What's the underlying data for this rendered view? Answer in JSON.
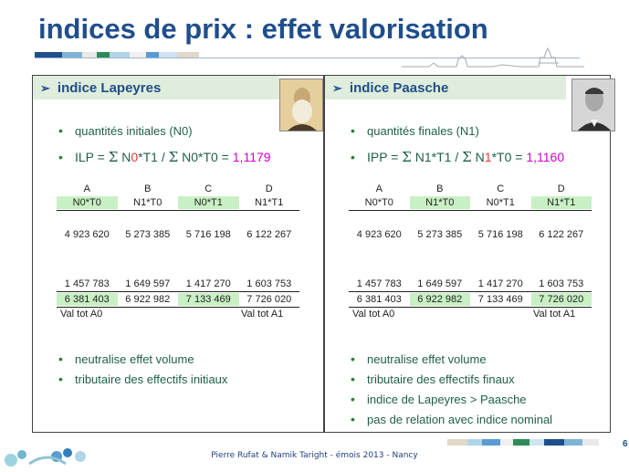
{
  "title": "indices de prix : effet valorisation",
  "footer": "Pierre Rufat & Namik Taright - émois 2013 - Nancy",
  "page_number": "6",
  "colors": {
    "title": "#1f4e8c",
    "bullet_text": "#1f5f4c",
    "highlight": "#c9f0c4",
    "index_value": "#d500d5",
    "accent_red": "#e53935"
  },
  "left_panel": {
    "heading": "indice Lapeyres",
    "portrait_icon": "portrait-laspeyres",
    "bullets_top": [
      "quantités initiales (N0)"
    ],
    "formula": {
      "prefix": "ILP = ",
      "sigma": "Σ",
      "n1": "N",
      "n1_idx": "0",
      "n1_rest": "*T1 / ",
      "n2": "N0*T0",
      "eq": " = ",
      "value": "1,1179"
    },
    "table": {
      "headers": [
        "A",
        "B",
        "C",
        "D"
      ],
      "subheaders": [
        "N0*T0",
        "N1*T0",
        "N0*T1",
        "N1*T1"
      ],
      "row1": [
        "4 923 620",
        "5 273 385",
        "5 716 198",
        "6 122 267"
      ],
      "row2": [
        "1 457 783",
        "1 649 597",
        "1 417 270",
        "1 603 753"
      ],
      "row3": [
        "6 381 403",
        "6 922 982",
        "7 133 469",
        "7 726 020"
      ],
      "foot_left": "Val tot A0",
      "foot_right": "Val tot A1"
    },
    "bullets_bottom": [
      "neutralise effet volume",
      "tributaire des effectifs initiaux"
    ]
  },
  "right_panel": {
    "heading": "indice Paasche",
    "portrait_icon": "portrait-paasche",
    "bullets_top": [
      "quantités finales (N1)"
    ],
    "formula": {
      "prefix": "IPP = ",
      "sigma": "Σ",
      "n1": "N1*T1 / ",
      "n2a": "N",
      "n2_idx": "1",
      "n2_rest": "*T0",
      "eq": " = ",
      "value": "1,1160"
    },
    "table": {
      "headers": [
        "A",
        "B",
        "C",
        "D"
      ],
      "subheaders": [
        "N0*T0",
        "N1*T0",
        "N0*T1",
        "N1*T1"
      ],
      "row1": [
        "4 923 620",
        "5 273 385",
        "5 716 198",
        "6 122 267"
      ],
      "row2": [
        "1 457 783",
        "1 649 597",
        "1 417 270",
        "1 603 753"
      ],
      "row3": [
        "6 381 403",
        "6 922 982",
        "7 133 469",
        "7 726 020"
      ],
      "foot_left": "Val tot A0",
      "foot_right": "Val tot A1"
    },
    "bullets_bottom": [
      "neutralise effet volume",
      "tributaire des effectifs finaux",
      "indice de Lapeyres > Paasche",
      "pas de relation avec indice nominal"
    ]
  }
}
